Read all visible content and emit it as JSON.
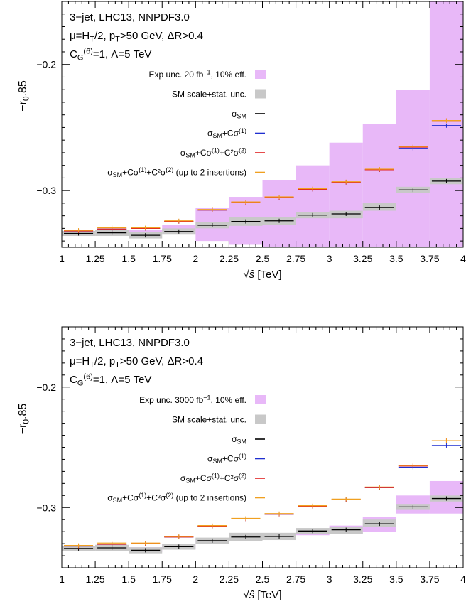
{
  "colors": {
    "exp_band": "#e8b8f8",
    "sm_band": "#c8c8c8",
    "sm": "#000000",
    "lin": "#1f2fd0",
    "quad": "#e02020",
    "two_ins": "#f0a020"
  },
  "chart_data": [
    {
      "type": "line",
      "panel": "top",
      "annotation_lines": [
        "3−jet, LHC13, NNPDF3.0",
        "μ=H_T/2, p_T>50 GeV, ΔR>0.4",
        "C_G^(6)=1, Λ=5 TeV"
      ],
      "xlabel": "√ŝ [TeV]",
      "ylabel": "−r_0.85",
      "xlim": [
        1,
        4
      ],
      "ylim": [
        -0.345,
        -0.15
      ],
      "x_ticks": [
        "1",
        "1.25",
        "1.5",
        "1.75",
        "2",
        "2.25",
        "2.5",
        "2.75",
        "3",
        "3.25",
        "3.5",
        "3.75",
        "4"
      ],
      "y_ticks": [
        "−0.2",
        "−0.3"
      ],
      "legend_position": "top-right",
      "legend": [
        "Exp unc. 20 fb^−1, 10% eff.",
        "SM scale+stat. unc.",
        "σ_SM",
        "σ_SM+Cσ^(1)",
        "σ_SM+Cσ^(1)+C²σ^(2)",
        "σ_SM+Cσ^(1)+C²σ^(2) (up to 2 insertions)"
      ],
      "bin_edges": [
        1,
        1.25,
        1.5,
        1.75,
        2,
        2.25,
        2.5,
        2.75,
        3,
        3.25,
        3.5,
        3.75,
        4
      ],
      "series": [
        {
          "name": "Exp unc. 20 fb^−1, 10% eff.",
          "kind": "band",
          "low": [
            -0.333,
            -0.333,
            -0.333,
            -0.333,
            -0.34,
            -0.343,
            -0.345,
            -0.345,
            -0.345,
            -0.345,
            -0.345,
            -0.345
          ],
          "high": [
            -0.333,
            -0.332,
            -0.331,
            -0.327,
            -0.314,
            -0.305,
            -0.292,
            -0.28,
            -0.262,
            -0.247,
            -0.22,
            -0.14
          ]
        },
        {
          "name": "SM scale+stat. unc.",
          "kind": "band",
          "low": [
            -0.336,
            -0.336,
            -0.338,
            -0.335,
            -0.33,
            -0.328,
            -0.327,
            -0.322,
            -0.322,
            -0.316,
            -0.302,
            -0.295
          ],
          "high": [
            -0.332,
            -0.331,
            -0.333,
            -0.33,
            -0.325,
            -0.321,
            -0.321,
            -0.317,
            -0.316,
            -0.31,
            -0.297,
            -0.29
          ]
        },
        {
          "name": "σ_SM",
          "values": [
            -0.334,
            -0.3335,
            -0.3355,
            -0.3325,
            -0.3275,
            -0.3245,
            -0.324,
            -0.3195,
            -0.3185,
            -0.3135,
            -0.2995,
            -0.2925
          ]
        },
        {
          "name": "σ_SM+Cσ^(1)",
          "values": [
            -0.332,
            -0.3305,
            -0.33,
            -0.3245,
            -0.3155,
            -0.3095,
            -0.3055,
            -0.299,
            -0.2935,
            -0.2835,
            -0.2665,
            -0.2485
          ]
        },
        {
          "name": "σ_SM+Cσ^(1)+C²σ^(2)",
          "values": [
            -0.332,
            -0.3305,
            -0.33,
            -0.3245,
            -0.3155,
            -0.3095,
            -0.3055,
            -0.299,
            -0.2935,
            -0.2835,
            -0.2655,
            -0.2445
          ]
        },
        {
          "name": "σ_SM+Cσ^(1)+C²σ^(2) (up to 2 insertions)",
          "values": [
            -0.3315,
            -0.3295,
            -0.3295,
            -0.324,
            -0.315,
            -0.309,
            -0.305,
            -0.2985,
            -0.293,
            -0.283,
            -0.265,
            -0.2445
          ]
        }
      ]
    },
    {
      "type": "line",
      "panel": "bottom",
      "annotation_lines": [
        "3−jet, LHC13, NNPDF3.0",
        "μ=H_T/2, p_T>50 GeV, ΔR>0.4",
        "C_G^(6)=1, Λ=5 TeV"
      ],
      "xlabel": "√ŝ [TeV]",
      "ylabel": "−r_0.85",
      "xlim": [
        1,
        4
      ],
      "ylim": [
        -0.35,
        -0.15
      ],
      "x_ticks": [
        "1",
        "1.25",
        "1.5",
        "1.75",
        "2",
        "2.25",
        "2.5",
        "2.75",
        "3",
        "3.25",
        "3.5",
        "3.75",
        "4"
      ],
      "y_ticks": [
        "−0.2",
        "−0.3"
      ],
      "legend_position": "top-right",
      "legend": [
        "Exp unc. 3000 fb^−1, 10% eff.",
        "SM scale+stat. unc.",
        "σ_SM",
        "σ_SM+Cσ^(1)",
        "σ_SM+Cσ^(1)+C²σ^(2)",
        "σ_SM+Cσ^(1)+C²σ^(2) (up to 2 insertions)"
      ],
      "bin_edges": [
        1,
        1.25,
        1.5,
        1.75,
        2,
        2.25,
        2.5,
        2.75,
        3,
        3.25,
        3.5,
        3.75,
        4
      ],
      "series": [
        {
          "name": "Exp unc. 3000 fb^−1, 10% eff.",
          "kind": "band",
          "low": [
            -0.335,
            -0.335,
            -0.337,
            -0.334,
            -0.329,
            -0.327,
            -0.326,
            -0.323,
            -0.322,
            -0.32,
            -0.305,
            -0.305
          ],
          "high": [
            -0.333,
            -0.332,
            -0.333,
            -0.33,
            -0.326,
            -0.322,
            -0.322,
            -0.318,
            -0.315,
            -0.308,
            -0.29,
            -0.278
          ]
        },
        {
          "name": "SM scale+stat. unc.",
          "kind": "band",
          "low": [
            -0.336,
            -0.336,
            -0.338,
            -0.335,
            -0.33,
            -0.328,
            -0.327,
            -0.322,
            -0.322,
            -0.316,
            -0.302,
            -0.295
          ],
          "high": [
            -0.332,
            -0.331,
            -0.333,
            -0.33,
            -0.325,
            -0.321,
            -0.321,
            -0.317,
            -0.316,
            -0.31,
            -0.297,
            -0.29
          ]
        },
        {
          "name": "σ_SM",
          "values": [
            -0.334,
            -0.3335,
            -0.3355,
            -0.3325,
            -0.3275,
            -0.3245,
            -0.324,
            -0.3195,
            -0.3185,
            -0.3135,
            -0.2995,
            -0.2925
          ]
        },
        {
          "name": "σ_SM+Cσ^(1)",
          "values": [
            -0.332,
            -0.3305,
            -0.33,
            -0.3245,
            -0.3155,
            -0.3095,
            -0.3055,
            -0.299,
            -0.2935,
            -0.2835,
            -0.2665,
            -0.2485
          ]
        },
        {
          "name": "σ_SM+Cσ^(1)+C²σ^(2)",
          "values": [
            -0.332,
            -0.3305,
            -0.33,
            -0.3245,
            -0.3155,
            -0.3095,
            -0.3055,
            -0.299,
            -0.2935,
            -0.2835,
            -0.2655,
            -0.2445
          ]
        },
        {
          "name": "σ_SM+Cσ^(1)+C²σ^(2) (up to 2 insertions)",
          "values": [
            -0.3315,
            -0.3295,
            -0.3295,
            -0.324,
            -0.315,
            -0.309,
            -0.305,
            -0.2985,
            -0.293,
            -0.283,
            -0.265,
            -0.2445
          ]
        }
      ]
    }
  ]
}
